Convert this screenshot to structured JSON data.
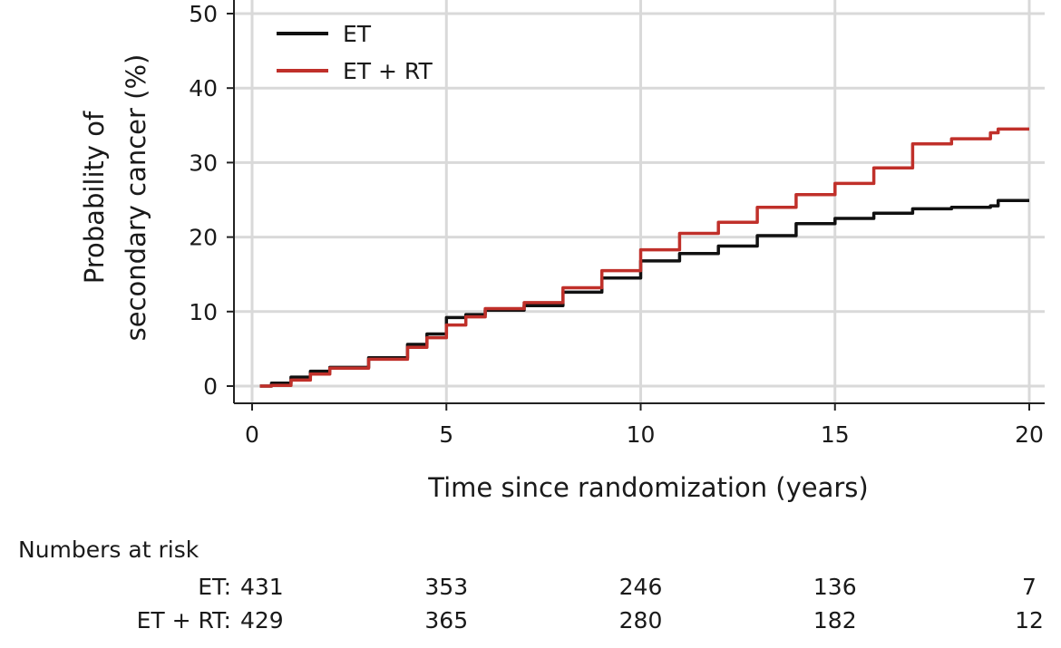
{
  "chart_data": {
    "type": "line",
    "xlabel": "Time since randomization (years)",
    "ylabel_lines": [
      "Probability of",
      "secondary cancer (%)"
    ],
    "xlim": [
      0,
      20
    ],
    "ylim": [
      0,
      50
    ],
    "x_ticks": [
      0,
      5,
      10,
      15,
      20
    ],
    "y_ticks": [
      0,
      10,
      20,
      30,
      40,
      50
    ],
    "grid": true,
    "legend_position": "top-left",
    "series": [
      {
        "name": "ET",
        "color": "#111111",
        "points": [
          [
            0.2,
            0
          ],
          [
            0.5,
            0.4
          ],
          [
            1,
            1.2
          ],
          [
            1.5,
            2.0
          ],
          [
            2,
            2.5
          ],
          [
            3,
            3.8
          ],
          [
            4,
            5.6
          ],
          [
            4.5,
            7.0
          ],
          [
            5,
            9.2
          ],
          [
            5.5,
            9.6
          ],
          [
            6,
            10.2
          ],
          [
            7,
            10.8
          ],
          [
            8,
            12.6
          ],
          [
            9,
            14.5
          ],
          [
            10,
            16.8
          ],
          [
            11,
            17.8
          ],
          [
            12,
            18.8
          ],
          [
            13,
            20.2
          ],
          [
            14,
            21.8
          ],
          [
            15,
            22.5
          ],
          [
            16,
            23.2
          ],
          [
            17,
            23.8
          ],
          [
            18,
            24.0
          ],
          [
            19,
            24.2
          ],
          [
            19.2,
            24.9
          ],
          [
            20,
            24.9
          ]
        ]
      },
      {
        "name": "ET + RT",
        "color": "#c0302a",
        "points": [
          [
            0.2,
            0
          ],
          [
            0.5,
            0.1
          ],
          [
            1,
            0.8
          ],
          [
            1.5,
            1.6
          ],
          [
            2,
            2.4
          ],
          [
            3,
            3.6
          ],
          [
            4,
            5.2
          ],
          [
            4.5,
            6.5
          ],
          [
            5,
            8.2
          ],
          [
            5.5,
            9.3
          ],
          [
            6,
            10.4
          ],
          [
            7,
            11.2
          ],
          [
            8,
            13.2
          ],
          [
            9,
            15.5
          ],
          [
            10,
            18.3
          ],
          [
            11,
            20.5
          ],
          [
            12,
            22.0
          ],
          [
            13,
            24.0
          ],
          [
            14,
            25.7
          ],
          [
            15,
            27.2
          ],
          [
            16,
            29.3
          ],
          [
            17,
            32.5
          ],
          [
            18,
            33.2
          ],
          [
            19,
            34.0
          ],
          [
            19.2,
            34.5
          ],
          [
            20,
            34.5
          ]
        ]
      }
    ],
    "numbers_at_risk": {
      "title": "Numbers at risk",
      "rows": [
        {
          "label": "ET:",
          "values": [
            431,
            353,
            246,
            136,
            7
          ]
        },
        {
          "label": "ET + RT:",
          "values": [
            429,
            365,
            280,
            182,
            12
          ]
        }
      ]
    }
  }
}
